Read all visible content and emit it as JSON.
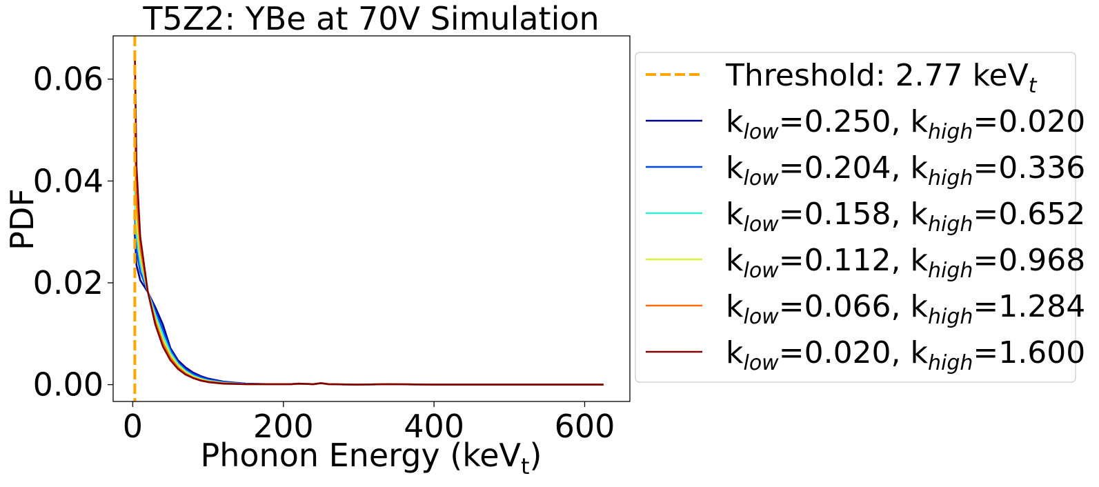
{
  "chart_data": {
    "type": "line",
    "title": "T5Z2: YBe at 70V Simulation",
    "xlabel": {
      "main": "Phonon Energy (keV",
      "sub": "t",
      "tail": ")"
    },
    "ylabel": "PDF",
    "xlim": [
      -26,
      660
    ],
    "ylim": [
      -0.0033,
      0.0685
    ],
    "xticks": [
      {
        "value": 0,
        "label": "0"
      },
      {
        "value": 200,
        "label": "200"
      },
      {
        "value": 400,
        "label": "400"
      },
      {
        "value": 600,
        "label": "600"
      }
    ],
    "yticks": [
      {
        "value": 0.0,
        "label": "0.00"
      },
      {
        "value": 0.02,
        "label": "0.02"
      },
      {
        "value": 0.04,
        "label": "0.04"
      },
      {
        "value": 0.06,
        "label": "0.06"
      }
    ],
    "grid": false,
    "legend_placement": "outside-right",
    "threshold": {
      "x": 2.77,
      "color": "#ffa500",
      "label": {
        "main": "Threshold: 2.77 keV",
        "sub": "t"
      }
    },
    "series": [
      {
        "legend": {
          "low": "0.250",
          "high": "0.020"
        },
        "color": "#00008b",
        "points": [
          [
            2.77,
            0.0295
          ],
          [
            5,
            0.0235
          ],
          [
            10,
            0.0205
          ],
          [
            20,
            0.0182
          ],
          [
            30,
            0.0152
          ],
          [
            40,
            0.0118
          ],
          [
            50,
            0.0072
          ],
          [
            60,
            0.0048
          ],
          [
            70,
            0.0034
          ],
          [
            80,
            0.0024
          ],
          [
            90,
            0.0017
          ],
          [
            100,
            0.0012
          ],
          [
            120,
            0.0006
          ],
          [
            150,
            0.0002
          ],
          [
            180,
            0.0001
          ],
          [
            210,
            0.0001
          ],
          [
            220,
            0.0002
          ],
          [
            240,
            0.0001
          ],
          [
            250,
            0.0003
          ],
          [
            260,
            0.0001
          ],
          [
            300,
            0.0
          ],
          [
            340,
            0.0001
          ],
          [
            400,
            0.0
          ],
          [
            500,
            0.0
          ],
          [
            625,
            0.0
          ]
        ]
      },
      {
        "legend": {
          "low": "0.204",
          "high": "0.336"
        },
        "color": "#0047ff",
        "points": [
          [
            2.77,
            0.0335
          ],
          [
            5,
            0.0265
          ],
          [
            10,
            0.0222
          ],
          [
            20,
            0.0183
          ],
          [
            30,
            0.0145
          ],
          [
            40,
            0.0108
          ],
          [
            50,
            0.0068
          ],
          [
            60,
            0.0044
          ],
          [
            70,
            0.003
          ],
          [
            80,
            0.0021
          ],
          [
            90,
            0.0015
          ],
          [
            100,
            0.001
          ],
          [
            120,
            0.0005
          ],
          [
            150,
            0.0002
          ],
          [
            180,
            0.0001
          ],
          [
            210,
            0.0001
          ],
          [
            220,
            0.0002
          ],
          [
            240,
            0.0001
          ],
          [
            250,
            0.0003
          ],
          [
            260,
            0.0001
          ],
          [
            300,
            0.0
          ],
          [
            340,
            0.0001
          ],
          [
            400,
            0.0
          ],
          [
            500,
            0.0
          ],
          [
            625,
            0.0
          ]
        ]
      },
      {
        "legend": {
          "low": "0.158",
          "high": "0.652"
        },
        "color": "#30ecd1",
        "points": [
          [
            2.77,
            0.038
          ],
          [
            5,
            0.0295
          ],
          [
            10,
            0.0238
          ],
          [
            20,
            0.0183
          ],
          [
            30,
            0.0138
          ],
          [
            40,
            0.0098
          ],
          [
            50,
            0.0063
          ],
          [
            60,
            0.0041
          ],
          [
            70,
            0.0027
          ],
          [
            80,
            0.0018
          ],
          [
            90,
            0.0012
          ],
          [
            100,
            0.0008
          ],
          [
            120,
            0.0004
          ],
          [
            150,
            0.0001
          ],
          [
            180,
            0.0001
          ],
          [
            210,
            0.0001
          ],
          [
            220,
            0.0002
          ],
          [
            240,
            0.0001
          ],
          [
            250,
            0.0003
          ],
          [
            260,
            0.0001
          ],
          [
            300,
            0.0
          ],
          [
            340,
            0.0001
          ],
          [
            400,
            0.0
          ],
          [
            500,
            0.0
          ],
          [
            625,
            0.0
          ]
        ]
      },
      {
        "legend": {
          "low": "0.112",
          "high": "0.968"
        },
        "color": "#d8f23a",
        "points": [
          [
            2.77,
            0.043
          ],
          [
            5,
            0.0325
          ],
          [
            10,
            0.0252
          ],
          [
            20,
            0.0183
          ],
          [
            30,
            0.0131
          ],
          [
            40,
            0.0089
          ],
          [
            50,
            0.0058
          ],
          [
            60,
            0.0038
          ],
          [
            70,
            0.0025
          ],
          [
            80,
            0.0016
          ],
          [
            90,
            0.0011
          ],
          [
            100,
            0.0007
          ],
          [
            120,
            0.0003
          ],
          [
            150,
            0.0001
          ],
          [
            180,
            0.0001
          ],
          [
            210,
            0.0001
          ],
          [
            220,
            0.0002
          ],
          [
            240,
            0.0001
          ],
          [
            250,
            0.0003
          ],
          [
            260,
            0.0001
          ],
          [
            300,
            0.0
          ],
          [
            340,
            0.0001
          ],
          [
            400,
            0.0
          ],
          [
            500,
            0.0
          ],
          [
            625,
            0.0
          ]
        ]
      },
      {
        "legend": {
          "low": "0.066",
          "high": "1.284"
        },
        "color": "#ff6a0f",
        "points": [
          [
            2.77,
            0.05
          ],
          [
            5,
            0.0365
          ],
          [
            10,
            0.0268
          ],
          [
            20,
            0.0183
          ],
          [
            30,
            0.0125
          ],
          [
            40,
            0.0082
          ],
          [
            50,
            0.0053
          ],
          [
            60,
            0.0034
          ],
          [
            70,
            0.0022
          ],
          [
            80,
            0.0014
          ],
          [
            90,
            0.0009
          ],
          [
            100,
            0.0006
          ],
          [
            120,
            0.0003
          ],
          [
            150,
            0.0001
          ],
          [
            180,
            0.0001
          ],
          [
            210,
            0.0001
          ],
          [
            220,
            0.0002
          ],
          [
            240,
            0.0001
          ],
          [
            250,
            0.0003
          ],
          [
            260,
            0.0001
          ],
          [
            300,
            0.0
          ],
          [
            340,
            0.0001
          ],
          [
            400,
            0.0
          ],
          [
            500,
            0.0
          ],
          [
            625,
            0.0
          ]
        ]
      },
      {
        "legend": {
          "low": "0.020",
          "high": "1.600"
        },
        "color": "#800000",
        "points": [
          [
            2.77,
            0.0655
          ],
          [
            5,
            0.043
          ],
          [
            10,
            0.029
          ],
          [
            20,
            0.0183
          ],
          [
            30,
            0.0118
          ],
          [
            40,
            0.0075
          ],
          [
            50,
            0.0048
          ],
          [
            60,
            0.0031
          ],
          [
            70,
            0.002
          ],
          [
            80,
            0.0013
          ],
          [
            90,
            0.0008
          ],
          [
            100,
            0.0005
          ],
          [
            120,
            0.0002
          ],
          [
            150,
            0.0001
          ],
          [
            180,
            0.0001
          ],
          [
            210,
            0.0001
          ],
          [
            220,
            0.0002
          ],
          [
            240,
            0.0001
          ],
          [
            250,
            0.0003
          ],
          [
            260,
            0.0001
          ],
          [
            300,
            0.0
          ],
          [
            340,
            0.0001
          ],
          [
            400,
            0.0
          ],
          [
            500,
            0.0
          ],
          [
            625,
            0.0
          ]
        ]
      }
    ]
  }
}
